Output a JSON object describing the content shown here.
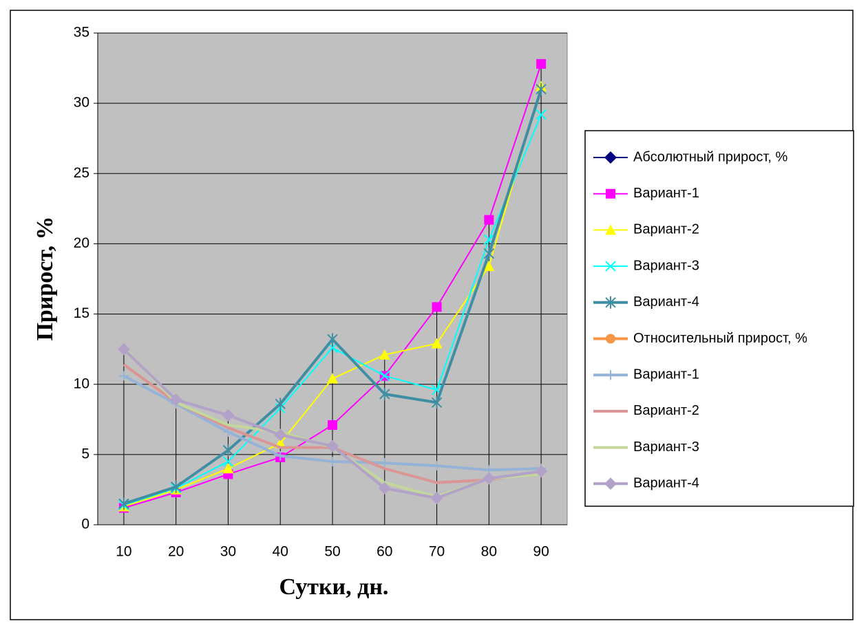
{
  "chart_data": {
    "type": "line",
    "y_label": "Прирост, %",
    "x_label": "Сутки, дн.",
    "categories": [
      10,
      20,
      30,
      40,
      50,
      60,
      70,
      80,
      90
    ],
    "ylim": [
      0,
      35
    ],
    "yticks": [
      0,
      5,
      10,
      15,
      20,
      25,
      30,
      35
    ],
    "grid": true,
    "drop_lines": true,
    "legend": "right",
    "series": [
      {
        "name": "Абсолютный прирост, %",
        "color": "#000080",
        "marker": "diamond",
        "width": 2,
        "values": [
          null,
          null,
          null,
          null,
          null,
          null,
          null,
          null,
          null
        ]
      },
      {
        "name": "Вариант-1",
        "color": "#ff00ff",
        "marker": "square",
        "width": 2,
        "values": [
          1.2,
          2.3,
          3.6,
          4.8,
          7.1,
          10.6,
          15.5,
          21.7,
          32.8
        ]
      },
      {
        "name": "Вариант-2",
        "color": "#ffff00",
        "marker": "triangle",
        "width": 2,
        "values": [
          1.3,
          2.5,
          4.0,
          5.8,
          10.4,
          12.1,
          12.9,
          18.4,
          31.2
        ]
      },
      {
        "name": "Вариант-3",
        "color": "#00ffff",
        "marker": "x",
        "width": 2,
        "values": [
          1.4,
          2.6,
          4.5,
          8.3,
          12.6,
          10.6,
          9.6,
          20.3,
          29.2
        ]
      },
      {
        "name": "Вариант-4",
        "color": "#3f8ea3",
        "marker": "star",
        "width": 4,
        "values": [
          1.5,
          2.7,
          5.3,
          8.6,
          13.2,
          9.3,
          8.7,
          19.3,
          31.0
        ]
      },
      {
        "name": "Относительный прирост, %",
        "color": "#f79646",
        "marker": "circle",
        "width": 4,
        "values": [
          null,
          null,
          null,
          null,
          null,
          null,
          null,
          null,
          null
        ]
      },
      {
        "name": "Вариант-1",
        "color": "#95b3d7",
        "marker": "plus",
        "width": 4,
        "values": [
          10.6,
          8.6,
          6.6,
          4.9,
          4.5,
          4.4,
          4.2,
          3.9,
          4.0
        ]
      },
      {
        "name": "Вариант-2",
        "color": "#d99694",
        "marker": "none",
        "width": 4,
        "values": [
          11.4,
          8.7,
          6.9,
          5.5,
          5.5,
          4.0,
          3.0,
          3.2,
          3.8
        ]
      },
      {
        "name": "Вариант-3",
        "color": "#c3d69b",
        "marker": "none",
        "width": 4,
        "values": [
          12.6,
          8.7,
          7.1,
          6.6,
          5.5,
          3.0,
          2.0,
          3.3,
          3.6
        ]
      },
      {
        "name": "Вариант-4",
        "color": "#b3a2c7",
        "marker": "diamond",
        "width": 4,
        "values": [
          12.5,
          8.9,
          7.8,
          6.4,
          5.6,
          2.6,
          1.9,
          3.3,
          3.8
        ]
      }
    ]
  }
}
